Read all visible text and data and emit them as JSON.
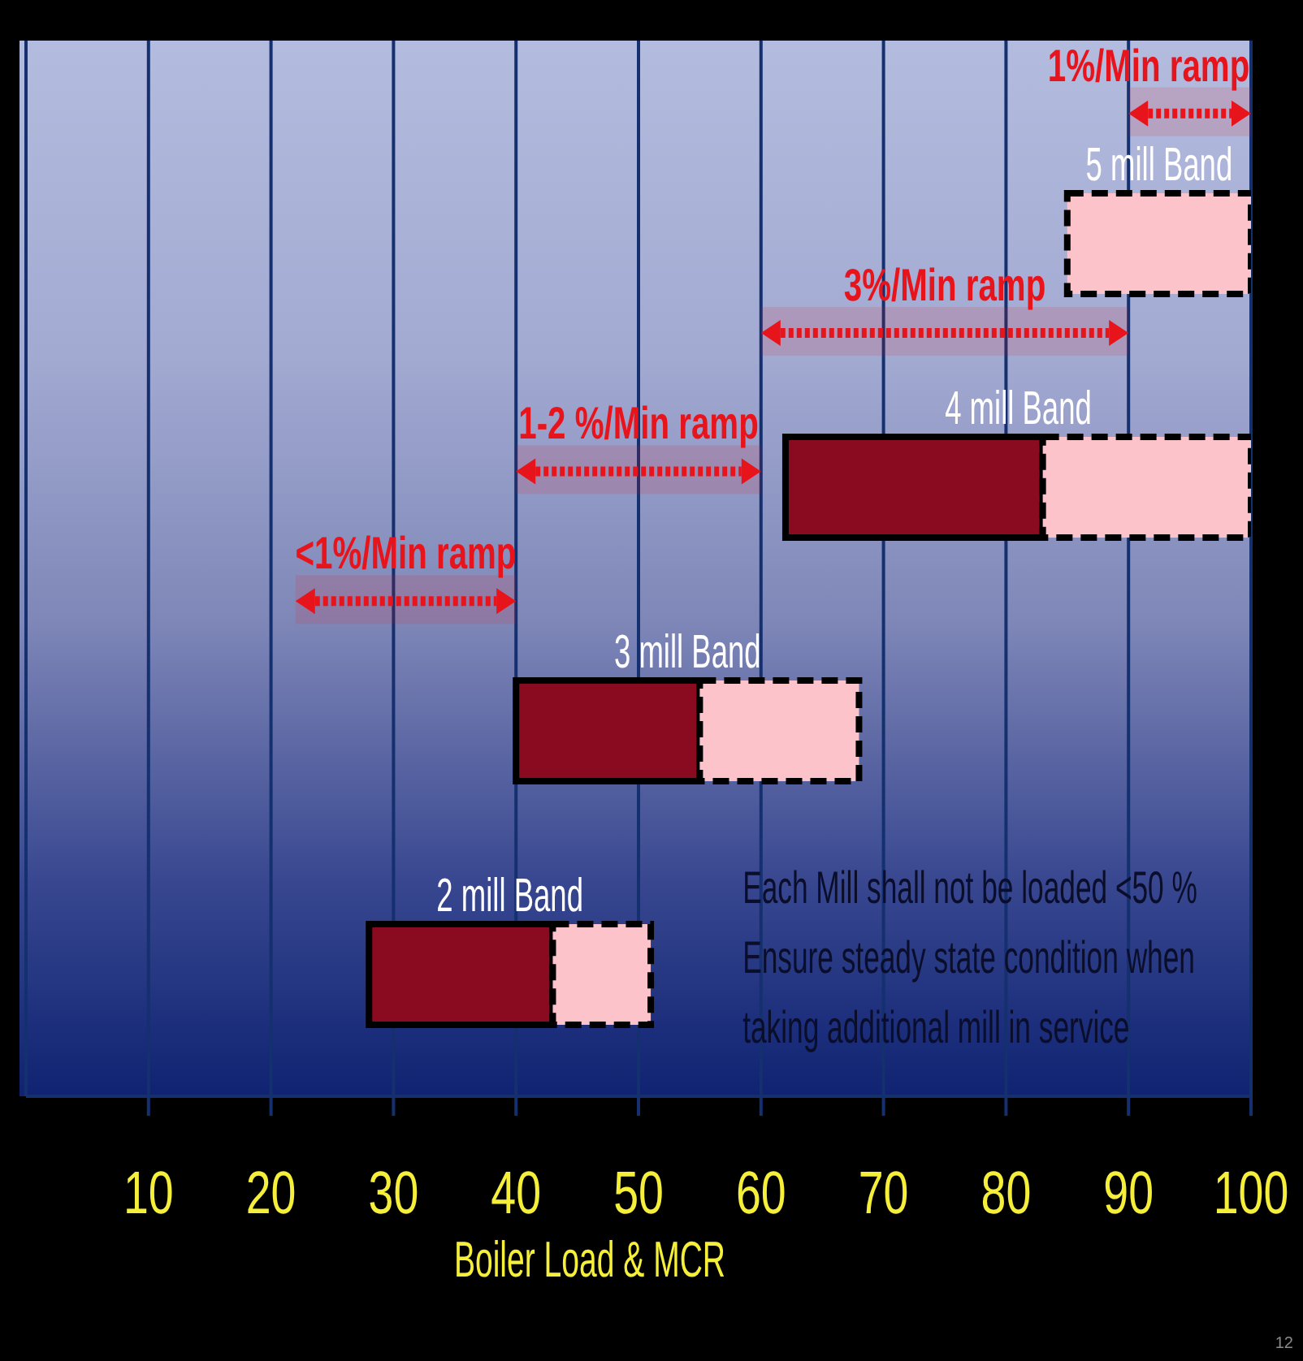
{
  "chart_data": {
    "type": "bar",
    "orientation": "horizontal",
    "categories": [
      "5 mill Band",
      "4 mill Band",
      "3 mill Band",
      "2 mill Band"
    ],
    "series": [
      {
        "color": "#8a0a20",
        "line_style": "solid",
        "base": [
          null,
          62,
          40,
          28
        ],
        "values": [
          null,
          21,
          15,
          15
        ]
      },
      {
        "color": "#fdc3cb",
        "line_style": "dashed",
        "base": [
          85,
          83,
          55,
          43
        ],
        "values": [
          15,
          17,
          13,
          8
        ]
      }
    ],
    "xlabel": "Boiler Load & MCR",
    "xlim": [
      0,
      100
    ],
    "xticks": [
      10,
      20,
      30,
      40,
      50,
      60,
      70,
      80,
      90,
      100
    ],
    "grid": "x",
    "tick_labels": "x",
    "bands": [
      {
        "axis": "x",
        "from": 22,
        "to": 40,
        "label": "<1%/Min ramp",
        "color": "#e8141b"
      },
      {
        "axis": "x",
        "from": 40,
        "to": 60,
        "label": "1-2 %/Min ramp",
        "color": "#e8141b"
      },
      {
        "axis": "x",
        "from": 60,
        "to": 90,
        "label": "3%/Min ramp",
        "color": "#e8141b"
      },
      {
        "axis": "x",
        "from": 90,
        "to": 100,
        "label": "1%/Min ramp",
        "color": "#e8141b"
      }
    ],
    "annotations": [
      "Each Mill shall not be loaded <50 %",
      "Ensure steady state condition when",
      "taking additional mill in service",
      "12"
    ]
  }
}
